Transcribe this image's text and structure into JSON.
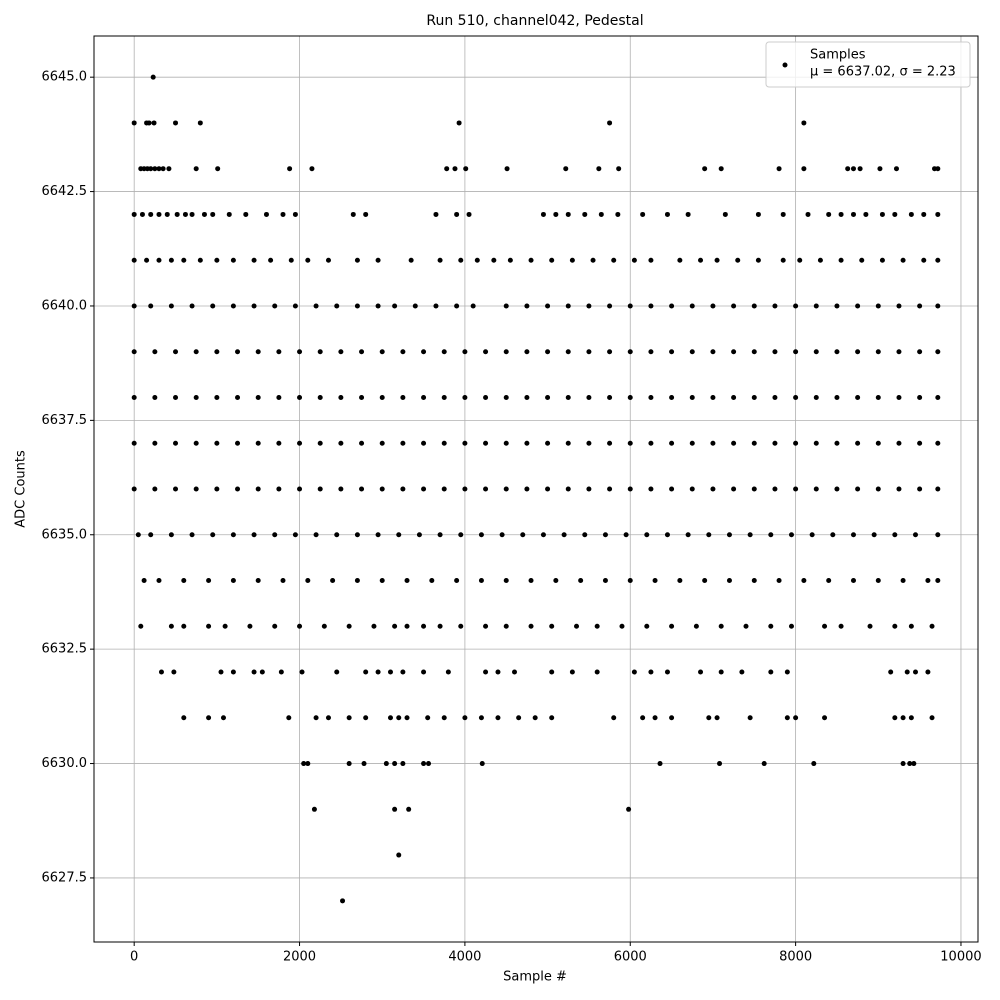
{
  "chart_data": {
    "type": "scatter",
    "title": "Run 510, channel042, Pedestal",
    "x_label": "Sample #",
    "y_label": "ADC Counts",
    "xlim": [
      -486,
      10206
    ],
    "ylim": [
      6626.1,
      6645.9
    ],
    "xticks": [
      0,
      2000,
      4000,
      6000,
      8000,
      10000
    ],
    "yticks": [
      {
        "value": 6627.5,
        "label": "6627.5"
      },
      {
        "value": 6630,
        "label": "6630.0"
      },
      6632.5,
      {
        "value": 6635,
        "label": "6635.0"
      },
      6637.5,
      {
        "value": 6640,
        "label": "6640.0"
      },
      6642.5,
      {
        "value": 6645,
        "label": "6645.0"
      }
    ],
    "grid": true,
    "legend": "upper right",
    "series": [
      {
        "name": "Samples",
        "stats": "μ = 6637.02, σ = 2.23",
        "color": "#000000",
        "groups": [
          {
            "y": 6645,
            "x": [
              230
            ]
          },
          {
            "y": 6644,
            "x": [
              0,
              150,
              180,
              240,
              500,
              800,
              3930,
              5750,
              8100
            ]
          },
          {
            "y": 6643,
            "x": [
              80,
              120,
              160,
              200,
              250,
              300,
              350,
              420,
              750,
              1010,
              1880,
              2150,
              3780,
              3880,
              4010,
              4510,
              5220,
              5620,
              5860,
              6900,
              7100,
              7800,
              8100,
              8630,
              8700,
              8780,
              9020,
              9220,
              9680,
              9720
            ]
          },
          {
            "y": 6642,
            "x": [
              0,
              100,
              200,
              300,
              400,
              520,
              620,
              700,
              850,
              950,
              1150,
              1350,
              1600,
              1800,
              1950,
              2650,
              2800,
              3650,
              3900,
              4050,
              4950,
              5100,
              5250,
              5450,
              5650,
              5850,
              6150,
              6450,
              6700,
              7150,
              7550,
              7850,
              8150,
              8400,
              8550,
              8700,
              8850,
              9050,
              9200,
              9400,
              9550,
              9720
            ]
          },
          {
            "y": 6641,
            "x": [
              0,
              150,
              300,
              450,
              600,
              800,
              1000,
              1200,
              1450,
              1650,
              1900,
              2100,
              2350,
              2700,
              2950,
              3350,
              3700,
              3950,
              4150,
              4350,
              4550,
              4800,
              5050,
              5300,
              5550,
              5800,
              6050,
              6250,
              6600,
              6850,
              7050,
              7300,
              7550,
              7850,
              8050,
              8300,
              8550,
              8800,
              9050,
              9300,
              9550,
              9720
            ]
          },
          {
            "y": 6640,
            "x": [
              0,
              200,
              450,
              700,
              950,
              1200,
              1450,
              1700,
              1950,
              2200,
              2450,
              2700,
              2950,
              3150,
              3400,
              3650,
              3900,
              4100,
              4500,
              4750,
              5000,
              5250,
              5500,
              5750,
              6000,
              6250,
              6500,
              6750,
              7000,
              7250,
              7500,
              7750,
              8000,
              8250,
              8500,
              8750,
              9000,
              9250,
              9500,
              9720
            ]
          },
          {
            "y": 6639,
            "x": [
              0,
              250,
              500,
              750,
              1000,
              1250,
              1500,
              1750,
              2000,
              2250,
              2500,
              2750,
              3000,
              3250,
              3500,
              3750,
              4000,
              4250,
              4500,
              4750,
              5000,
              5250,
              5500,
              5750,
              6000,
              6250,
              6500,
              6750,
              7000,
              7250,
              7500,
              7750,
              8000,
              8250,
              8500,
              8750,
              9000,
              9250,
              9500,
              9720
            ]
          },
          {
            "y": 6638,
            "x": [
              0,
              250,
              500,
              750,
              1000,
              1250,
              1500,
              1750,
              2000,
              2250,
              2500,
              2750,
              3000,
              3250,
              3500,
              3750,
              4000,
              4250,
              4500,
              4750,
              5000,
              5250,
              5500,
              5750,
              6000,
              6250,
              6500,
              6750,
              7000,
              7250,
              7500,
              7750,
              8000,
              8250,
              8500,
              8750,
              9000,
              9250,
              9500,
              9720
            ]
          },
          {
            "y": 6637,
            "x": [
              0,
              250,
              500,
              750,
              1000,
              1250,
              1500,
              1750,
              2000,
              2250,
              2500,
              2750,
              3000,
              3250,
              3500,
              3750,
              4000,
              4250,
              4500,
              4750,
              5000,
              5250,
              5500,
              5750,
              6000,
              6250,
              6500,
              6750,
              7000,
              7250,
              7500,
              7750,
              8000,
              8250,
              8500,
              8750,
              9000,
              9250,
              9500,
              9720
            ]
          },
          {
            "y": 6636,
            "x": [
              0,
              250,
              500,
              750,
              1000,
              1250,
              1500,
              1750,
              2000,
              2250,
              2500,
              2750,
              3000,
              3250,
              3500,
              3750,
              4000,
              4250,
              4500,
              4750,
              5000,
              5250,
              5500,
              5750,
              6000,
              6250,
              6500,
              6750,
              7000,
              7250,
              7500,
              7750,
              8000,
              8250,
              8500,
              8750,
              9000,
              9250,
              9500,
              9720
            ]
          },
          {
            "y": 6635,
            "x": [
              50,
              200,
              450,
              700,
              950,
              1200,
              1450,
              1700,
              1950,
              2200,
              2450,
              2700,
              2950,
              3200,
              3450,
              3700,
              3950,
              4200,
              4450,
              4700,
              4950,
              5200,
              5450,
              5700,
              5950,
              6200,
              6450,
              6700,
              6950,
              7200,
              7450,
              7700,
              7950,
              8200,
              8450,
              8700,
              8950,
              9200,
              9450,
              9720
            ]
          },
          {
            "y": 6634,
            "x": [
              120,
              300,
              600,
              900,
              1200,
              1500,
              1800,
              2100,
              2400,
              2700,
              3000,
              3300,
              3600,
              3900,
              4200,
              4500,
              4800,
              5100,
              5400,
              5700,
              6000,
              6300,
              6600,
              6900,
              7200,
              7500,
              7800,
              8100,
              8400,
              8700,
              9000,
              9300,
              9600,
              9720
            ]
          },
          {
            "y": 6633,
            "x": [
              80,
              450,
              600,
              900,
              1100,
              1400,
              1700,
              2000,
              2300,
              2600,
              2900,
              3150,
              3300,
              3500,
              3700,
              3950,
              4250,
              4500,
              4800,
              5050,
              5350,
              5600,
              5900,
              6200,
              6500,
              6800,
              7100,
              7400,
              7700,
              7950,
              8350,
              8550,
              8900,
              9200,
              9400,
              9650
            ]
          },
          {
            "y": 6632,
            "x": [
              330,
              480,
              1050,
              1200,
              1450,
              1550,
              1780,
              2030,
              2450,
              2800,
              2950,
              3100,
              3250,
              3500,
              3800,
              4250,
              4400,
              4600,
              5050,
              5300,
              5600,
              6050,
              6250,
              6450,
              6850,
              7100,
              7350,
              7700,
              7900,
              9150,
              9350,
              9450,
              9600
            ]
          },
          {
            "y": 6631,
            "x": [
              600,
              900,
              1080,
              1870,
              2200,
              2350,
              2600,
              2800,
              3100,
              3200,
              3300,
              3550,
              3750,
              4000,
              4200,
              4400,
              4650,
              4850,
              5050,
              5800,
              6150,
              6300,
              6500,
              6950,
              7050,
              7450,
              7900,
              8000,
              8350,
              9200,
              9300,
              9400,
              9650
            ]
          },
          {
            "y": 6630,
            "x": [
              2050,
              2100,
              2600,
              2780,
              3050,
              3150,
              3250,
              3500,
              3560,
              4210,
              6360,
              7080,
              7620,
              8220,
              9300,
              9380,
              9430
            ]
          },
          {
            "y": 6629,
            "x": [
              2180,
              3150,
              3320,
              5980
            ]
          },
          {
            "y": 6628,
            "x": [
              3200
            ]
          },
          {
            "y": 6627,
            "x": [
              2520
            ]
          }
        ]
      }
    ]
  }
}
